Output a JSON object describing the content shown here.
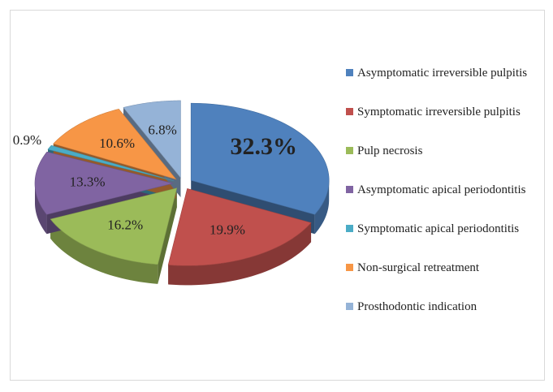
{
  "chart_data": {
    "type": "pie",
    "categories": [
      "Asymptomatic irreversible pulpitis",
      "Symptomatic irreversible pulpitis",
      "Pulp necrosis",
      "Asymptomatic apical periodontitis",
      "Symptomatic apical periodontitis",
      "Non-surgical retreatment",
      "Prosthodontic indication"
    ],
    "values": [
      32.3,
      19.9,
      16.2,
      13.3,
      0.9,
      10.6,
      6.8
    ],
    "value_labels": [
      "32.3%",
      "19.9%",
      "16.2%",
      "13.3%",
      "0.9%",
      "10.6%",
      "6.8%"
    ],
    "colors": [
      "#4f81bd",
      "#c0504d",
      "#9bbb59",
      "#8064a2",
      "#4bacc6",
      "#f79646",
      "#95b3d7"
    ],
    "legend": "right"
  }
}
